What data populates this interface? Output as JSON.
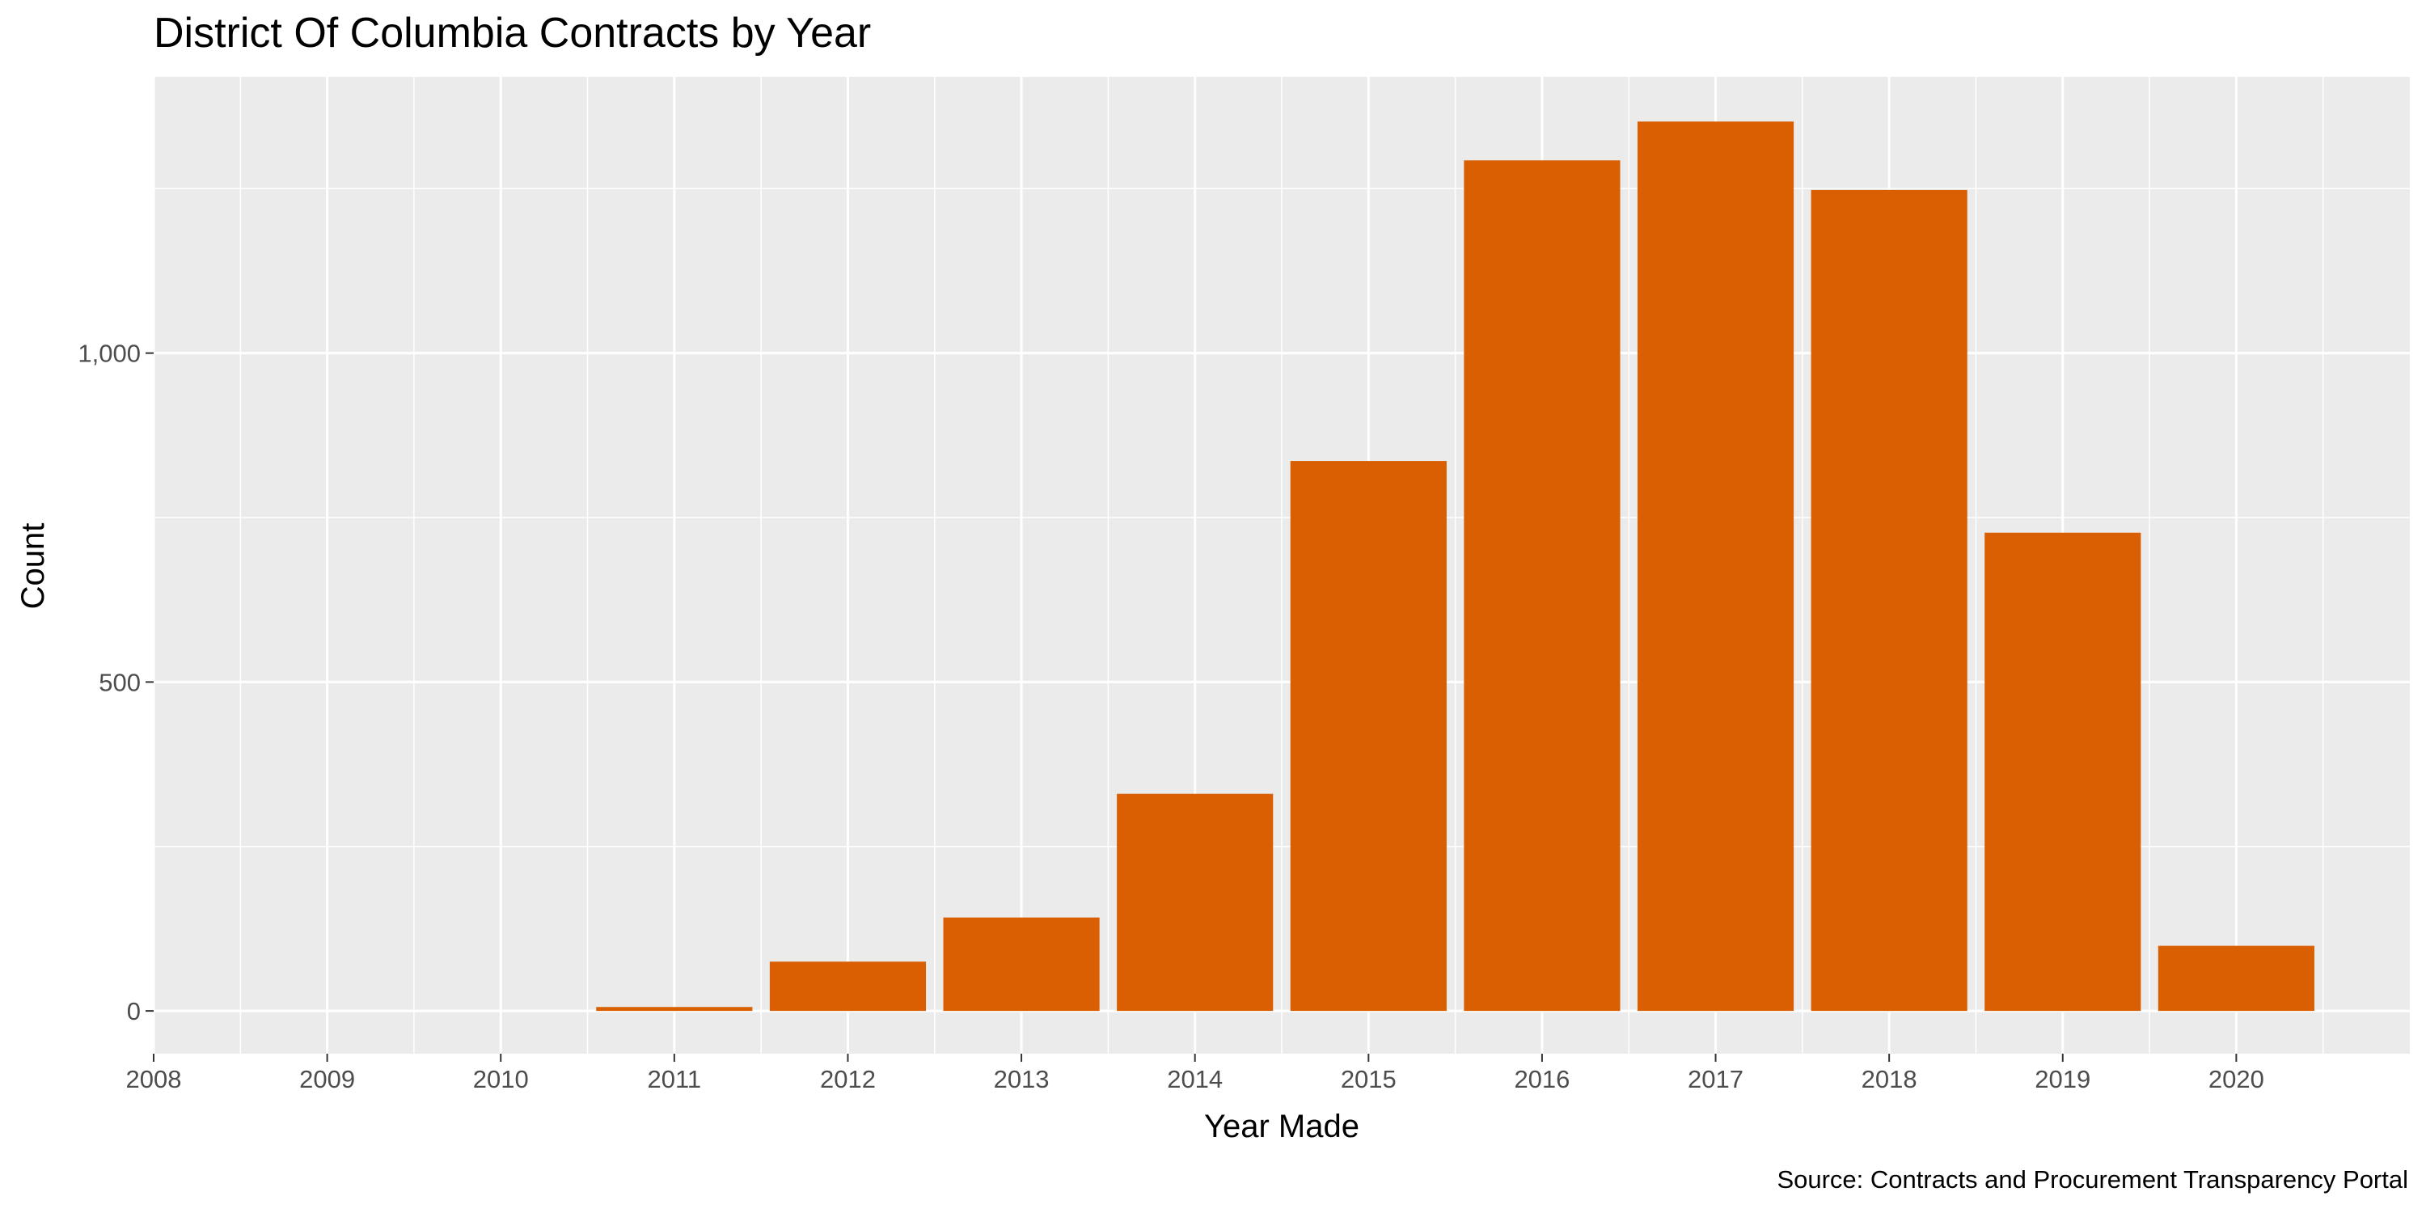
{
  "chart_data": {
    "type": "bar",
    "title": "District Of Columbia Contracts by Year",
    "xlabel": "Year Made",
    "ylabel": "Count",
    "caption": "Source: Contracts and Procurement Transparency Portal",
    "x_ticks": [
      "2008",
      "2009",
      "2010",
      "2011",
      "2012",
      "2013",
      "2014",
      "2015",
      "2016",
      "2017",
      "2018",
      "2019",
      "2020"
    ],
    "y_ticks": [
      "0",
      "500",
      "1,000"
    ],
    "categories": [
      2011,
      2012,
      2013,
      2014,
      2015,
      2016,
      2017,
      2018,
      2019,
      2020
    ],
    "values": [
      6,
      75,
      142,
      330,
      836,
      1293,
      1352,
      1248,
      727,
      99
    ],
    "xlim": [
      2008,
      2021
    ],
    "ylim": [
      -65,
      1420
    ],
    "bar_color": "#d95f02",
    "panel_color": "#ebebeb",
    "grid": true,
    "legend": "none"
  }
}
